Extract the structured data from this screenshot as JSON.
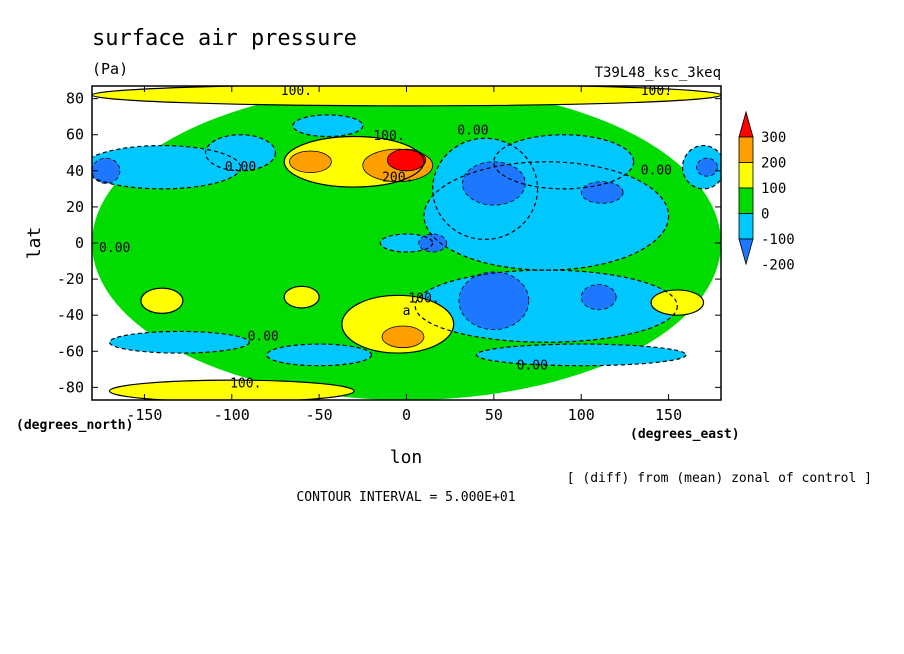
{
  "chart_data": {
    "type": "contour",
    "title": "surface air pressure",
    "units": "(Pa)",
    "run_label": "T39L48_ksc_3keq",
    "xlabel": "lon",
    "ylabel": "lat",
    "x_unit_label": "(degrees_east)",
    "y_unit_label": "(degrees_north)",
    "xlim": [
      -180,
      180
    ],
    "ylim": [
      -87,
      87
    ],
    "x_ticks": [
      -150,
      -100,
      -50,
      0,
      50,
      100,
      150
    ],
    "x_tick_labels": [
      "-150",
      "-100",
      "-50",
      "0",
      "50",
      "100",
      "150"
    ],
    "y_ticks": [
      80,
      60,
      40,
      20,
      0,
      -20,
      -40,
      -60,
      -80
    ],
    "y_tick_labels": [
      "80",
      "60",
      "40",
      "20",
      "0",
      "-20",
      "-40",
      "-60",
      "-80"
    ],
    "description_note": "[ (diff) from (mean) zonal of control ]",
    "contour_interval": "CONTOUR INTERVAL = 5.000E+01",
    "colorbar": {
      "levels": [
        -200,
        -100,
        0,
        100,
        200,
        300
      ],
      "labels": [
        "-200",
        "-100",
        "0",
        "100",
        "200",
        "300"
      ],
      "colors": [
        "#1e78ff",
        "#00c8ff",
        "#00dc00",
        "#ffff00",
        "#ffa000",
        "#ff0000"
      ]
    },
    "contour_labels": [
      {
        "text": "100.",
        "lon": -63,
        "lat": 82
      },
      {
        "text": "100.",
        "lon": 143,
        "lat": 82
      },
      {
        "text": "100.",
        "lon": -10,
        "lat": 57
      },
      {
        "text": "0.00",
        "lon": 38,
        "lat": 60
      },
      {
        "text": "0.00",
        "lon": -95,
        "lat": 40
      },
      {
        "text": "200.",
        "lon": -5,
        "lat": 34
      },
      {
        "text": "0.00",
        "lon": 143,
        "lat": 38
      },
      {
        "text": "0.00",
        "lon": -167,
        "lat": -5
      },
      {
        "text": "100.",
        "lon": 10,
        "lat": -33
      },
      {
        "text": "a",
        "lon": 0,
        "lat": -40
      },
      {
        "text": "0.00",
        "lon": -82,
        "lat": -54
      },
      {
        "text": "0.00",
        "lon": 72,
        "lat": -70
      },
      {
        "text": "100.",
        "lon": -92,
        "lat": -80
      }
    ],
    "regions": [
      {
        "level": 0,
        "lon": 0,
        "lat": 0,
        "rx": 180,
        "ry": 87
      },
      {
        "level": 100,
        "lon": 0,
        "lat": 82,
        "rx": 180,
        "ry": 6
      },
      {
        "level": 100,
        "lon": -100,
        "lat": -82,
        "rx": 70,
        "ry": 6
      },
      {
        "level": -100,
        "lon": -140,
        "lat": 42,
        "rx": 45,
        "ry": 12
      },
      {
        "level": -100,
        "lon": -95,
        "lat": 50,
        "rx": 20,
        "ry": 10
      },
      {
        "level": -200,
        "lon": -172,
        "lat": 40,
        "rx": 8,
        "ry": 7
      },
      {
        "level": -100,
        "lon": 170,
        "lat": 42,
        "rx": 12,
        "ry": 12
      },
      {
        "level": -200,
        "lon": 172,
        "lat": 42,
        "rx": 6,
        "ry": 5
      },
      {
        "level": -100,
        "lon": -45,
        "lat": 65,
        "rx": 20,
        "ry": 6
      },
      {
        "level": -100,
        "lon": 80,
        "lat": 15,
        "rx": 70,
        "ry": 30
      },
      {
        "level": -100,
        "lon": 90,
        "lat": 45,
        "rx": 40,
        "ry": 15
      },
      {
        "level": -100,
        "lon": 45,
        "lat": 30,
        "rx": 30,
        "ry": 28
      },
      {
        "level": -100,
        "lon": 80,
        "lat": -35,
        "rx": 75,
        "ry": 20
      },
      {
        "level": -100,
        "lon": -130,
        "lat": -55,
        "rx": 40,
        "ry": 6
      },
      {
        "level": -100,
        "lon": -50,
        "lat": -62,
        "rx": 30,
        "ry": 6
      },
      {
        "level": -100,
        "lon": 100,
        "lat": -62,
        "rx": 60,
        "ry": 6
      },
      {
        "level": -100,
        "lon": 0,
        "lat": 0,
        "rx": 15,
        "ry": 5
      },
      {
        "level": -200,
        "lon": 50,
        "lat": 33,
        "rx": 18,
        "ry": 12
      },
      {
        "level": -200,
        "lon": 50,
        "lat": -32,
        "rx": 20,
        "ry": 16
      },
      {
        "level": -200,
        "lon": 112,
        "lat": 28,
        "rx": 12,
        "ry": 6
      },
      {
        "level": -200,
        "lon": 110,
        "lat": -30,
        "rx": 10,
        "ry": 7
      },
      {
        "level": -200,
        "lon": 15,
        "lat": 0,
        "rx": 8,
        "ry": 5
      },
      {
        "level": 100,
        "lon": -30,
        "lat": 45,
        "rx": 40,
        "ry": 14
      },
      {
        "level": 100,
        "lon": -5,
        "lat": -45,
        "rx": 32,
        "ry": 16
      },
      {
        "level": 100,
        "lon": -140,
        "lat": -32,
        "rx": 12,
        "ry": 7
      },
      {
        "level": 100,
        "lon": -60,
        "lat": -30,
        "rx": 10,
        "ry": 6
      },
      {
        "level": 100,
        "lon": 155,
        "lat": -33,
        "rx": 15,
        "ry": 7
      },
      {
        "level": 200,
        "lon": -55,
        "lat": 45,
        "rx": 12,
        "ry": 6
      },
      {
        "level": 200,
        "lon": -2,
        "lat": -52,
        "rx": 12,
        "ry": 6
      },
      {
        "level": 200,
        "lon": -5,
        "lat": 43,
        "rx": 20,
        "ry": 9
      },
      {
        "level": 300,
        "lon": 0,
        "lat": 46,
        "rx": 11,
        "ry": 6
      }
    ]
  }
}
